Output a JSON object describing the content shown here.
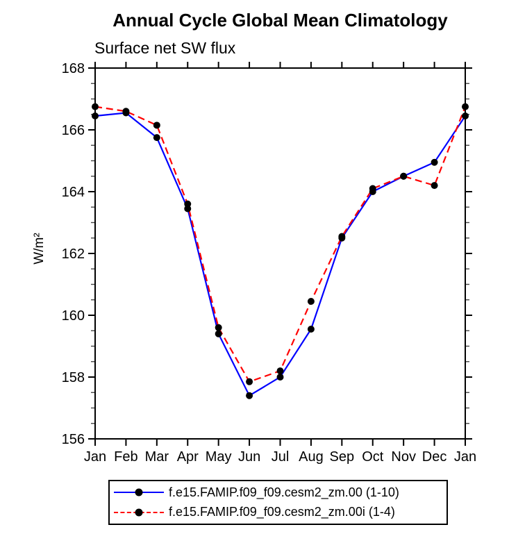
{
  "chart_data": {
    "type": "line",
    "title": "Annual Cycle Global Mean Climatology",
    "subtitle": "Surface net SW flux",
    "ylabel": "W/m²",
    "xlabel": "",
    "categories": [
      "Jan",
      "Feb",
      "Mar",
      "Apr",
      "May",
      "Jun",
      "Jul",
      "Aug",
      "Sep",
      "Oct",
      "Nov",
      "Dec",
      "Jan"
    ],
    "series": [
      {
        "name": "f.e15.FAMIP.f09_f09.cesm2_zm.00 (1-10)",
        "color": "#0000ff",
        "line_style": "solid",
        "values": [
          166.45,
          166.55,
          165.75,
          163.45,
          159.4,
          157.4,
          158.0,
          159.55,
          162.5,
          164.0,
          164.5,
          164.95,
          166.45
        ]
      },
      {
        "name": "f.e15.FAMIP.f09_f09.cesm2_zm.00i (1-4)",
        "color": "#ff0000",
        "line_style": "dashed",
        "values": [
          166.75,
          166.6,
          166.15,
          163.6,
          159.6,
          157.85,
          158.2,
          160.45,
          162.55,
          164.1,
          164.5,
          164.2,
          166.75
        ]
      }
    ],
    "marker": {
      "shape": "circle",
      "color": "#000000"
    },
    "ylim": [
      156,
      168
    ],
    "yticks": [
      156,
      158,
      160,
      162,
      164,
      166,
      168
    ],
    "minor_tick_step": 0.5,
    "grid": false,
    "legend_position": "bottom",
    "axis_color": "#000000"
  }
}
